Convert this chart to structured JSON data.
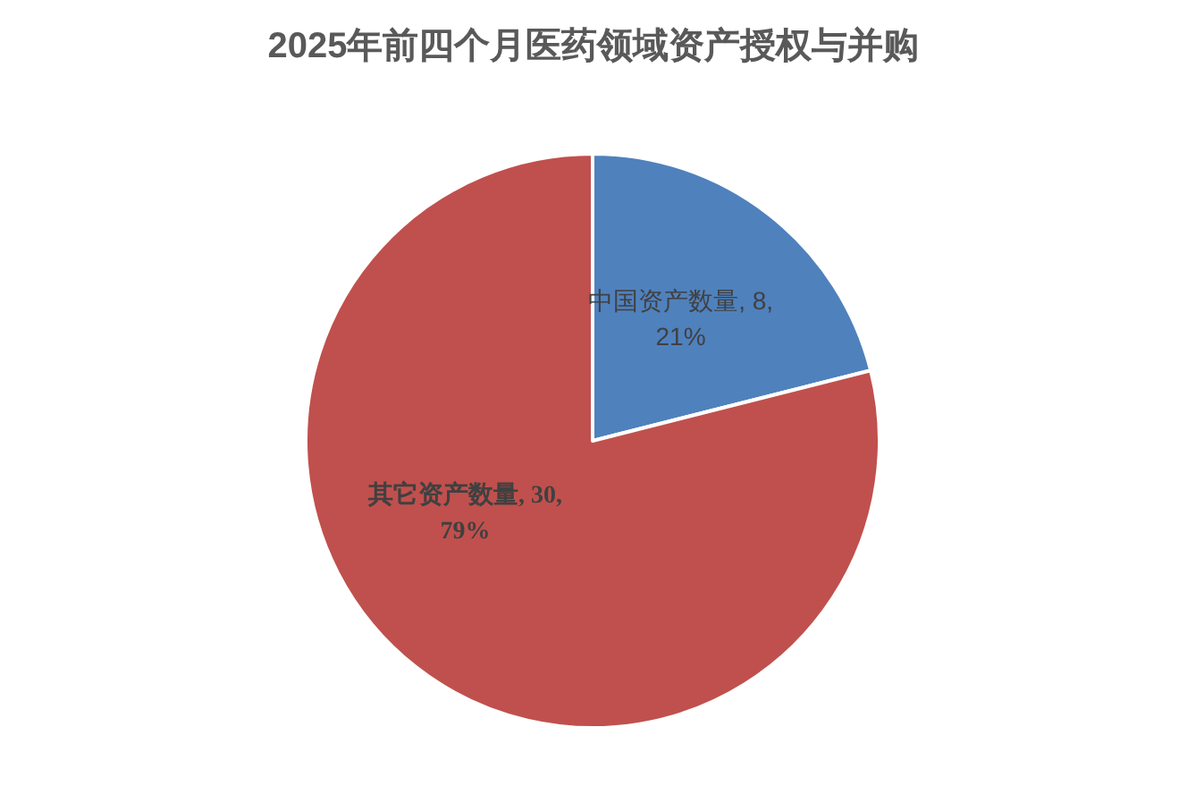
{
  "chart_data": {
    "type": "pie",
    "title": "2025年前四个月医药领域资产授权与并购",
    "categories": [
      "中国资产数量",
      "其它资产数量"
    ],
    "values": [
      8,
      30
    ],
    "colors": [
      "#4f81bd",
      "#c0504d"
    ],
    "value_labels": [
      "8, 21%",
      "30, 79%"
    ]
  }
}
